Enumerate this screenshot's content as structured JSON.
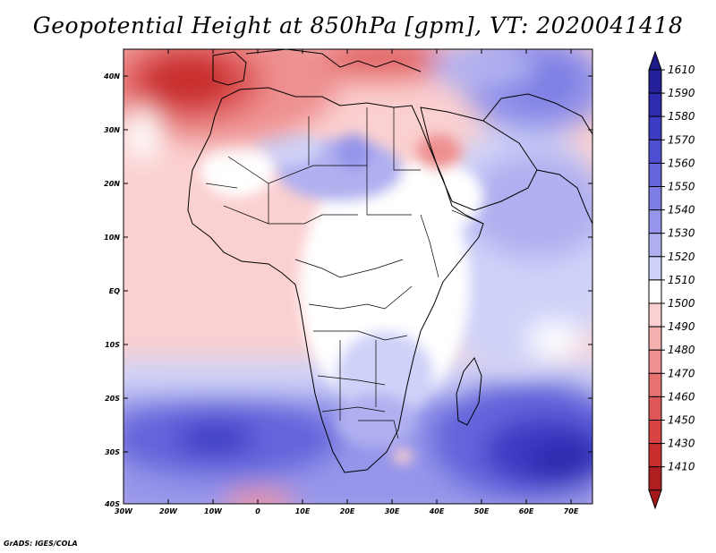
{
  "map": {
    "title": "Geopotential Height at 850hPa [gpm], VT: 2020041418",
    "credit": "GrADS: IGES/COLA",
    "lat_labels": [
      "40N",
      "30N",
      "20N",
      "10N",
      "EQ",
      "10S",
      "20S",
      "30S",
      "40S"
    ],
    "lon_labels": [
      "30W",
      "20W",
      "10W",
      "0",
      "10E",
      "20E",
      "30E",
      "40E",
      "50E",
      "60E",
      "70E"
    ],
    "colorbar": {
      "levels": [
        "1610",
        "1590",
        "1580",
        "1570",
        "1560",
        "1550",
        "1540",
        "1530",
        "1520",
        "1510",
        "1500",
        "1490",
        "1480",
        "1470",
        "1460",
        "1450",
        "1430",
        "1410"
      ],
      "colors": [
        "#24209a",
        "#2d2bb0",
        "#3c3bc4",
        "#4f4fd2",
        "#6565dc",
        "#7d7de4",
        "#9595ea",
        "#b0b0f0",
        "#cfd2f8",
        "#ffffff",
        "#fbd0d0",
        "#f5b0b0",
        "#ee9090",
        "#e77272",
        "#df5858",
        "#d74242",
        "#c92e2e",
        "#b01f1f"
      ],
      "end_colors": {
        "top": "#1e1a8c",
        "bottom": "#a41818"
      }
    }
  }
}
